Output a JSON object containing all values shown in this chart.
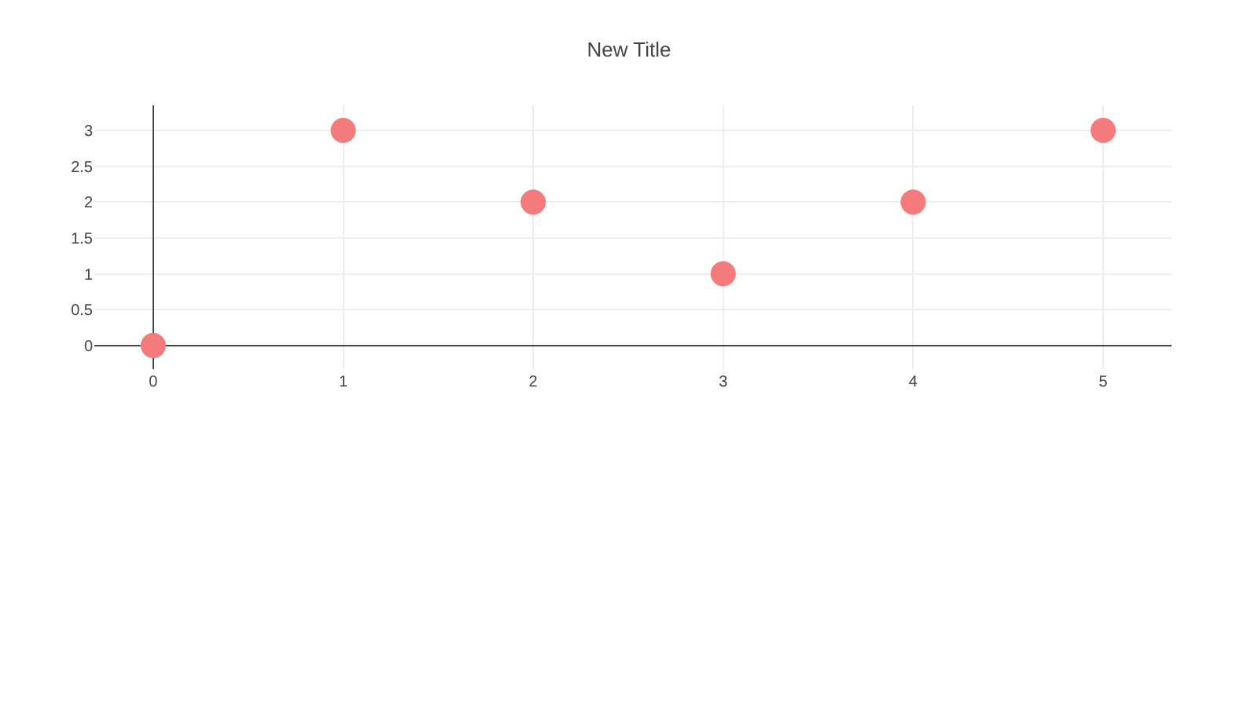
{
  "chart_data": {
    "type": "scatter",
    "title": "New Title",
    "x": [
      0,
      1,
      2,
      3,
      4,
      5
    ],
    "series": [
      {
        "color": "#f47b7b",
        "values": [
          0,
          3,
          2,
          1,
          2,
          3
        ]
      }
    ],
    "xlim": [
      -0.31,
      5.36
    ],
    "xticks": [
      0,
      1,
      2,
      3,
      4,
      5
    ],
    "ylim": [
      -0.33,
      3.35
    ],
    "yticks": [
      0,
      0.5,
      1,
      1.5,
      2,
      2.5,
      3
    ],
    "grid": true,
    "marker": "circle"
  }
}
